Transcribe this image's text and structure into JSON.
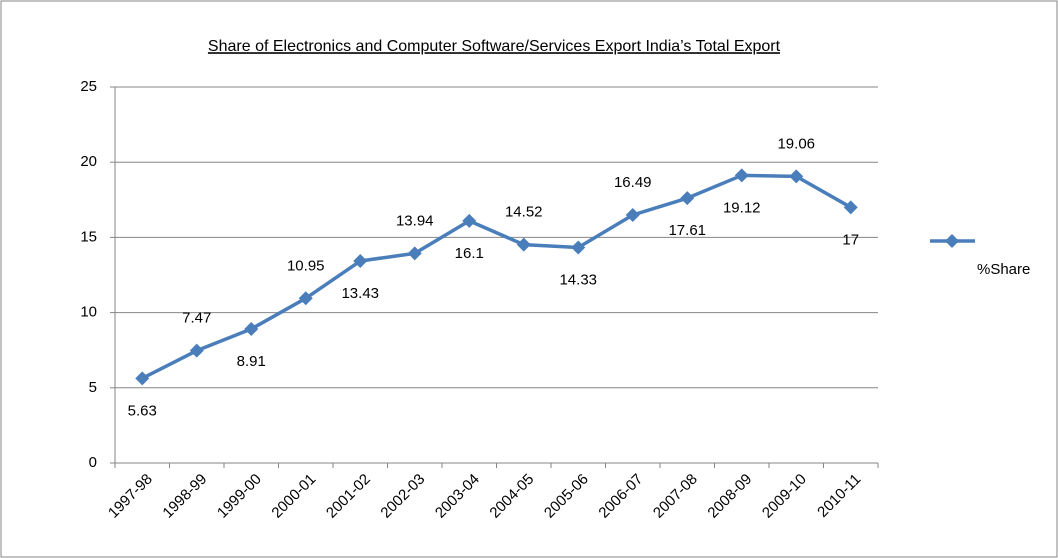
{
  "chart_data": {
    "type": "line",
    "title": "Share of Electronics and Computer Software/Services Export India’s Total Export",
    "categories": [
      "1997-98",
      "1998-99",
      "1999-00",
      "2000-01",
      "2001-02",
      "2002-03",
      "2003-04",
      "2004-05",
      "2005-06",
      "2006-07",
      "2007-08",
      "2008-09",
      "2009-10",
      "2010-11"
    ],
    "series": [
      {
        "name": "%Share",
        "color": "#4a7ebb",
        "values": [
          5.63,
          7.47,
          8.91,
          10.95,
          13.43,
          13.94,
          16.1,
          14.52,
          14.33,
          16.49,
          17.61,
          19.12,
          19.06,
          17
        ]
      }
    ],
    "ylim": [
      0,
      25
    ],
    "yticks": [
      0,
      5,
      10,
      15,
      20,
      25
    ],
    "grid": true,
    "legend": "right"
  }
}
